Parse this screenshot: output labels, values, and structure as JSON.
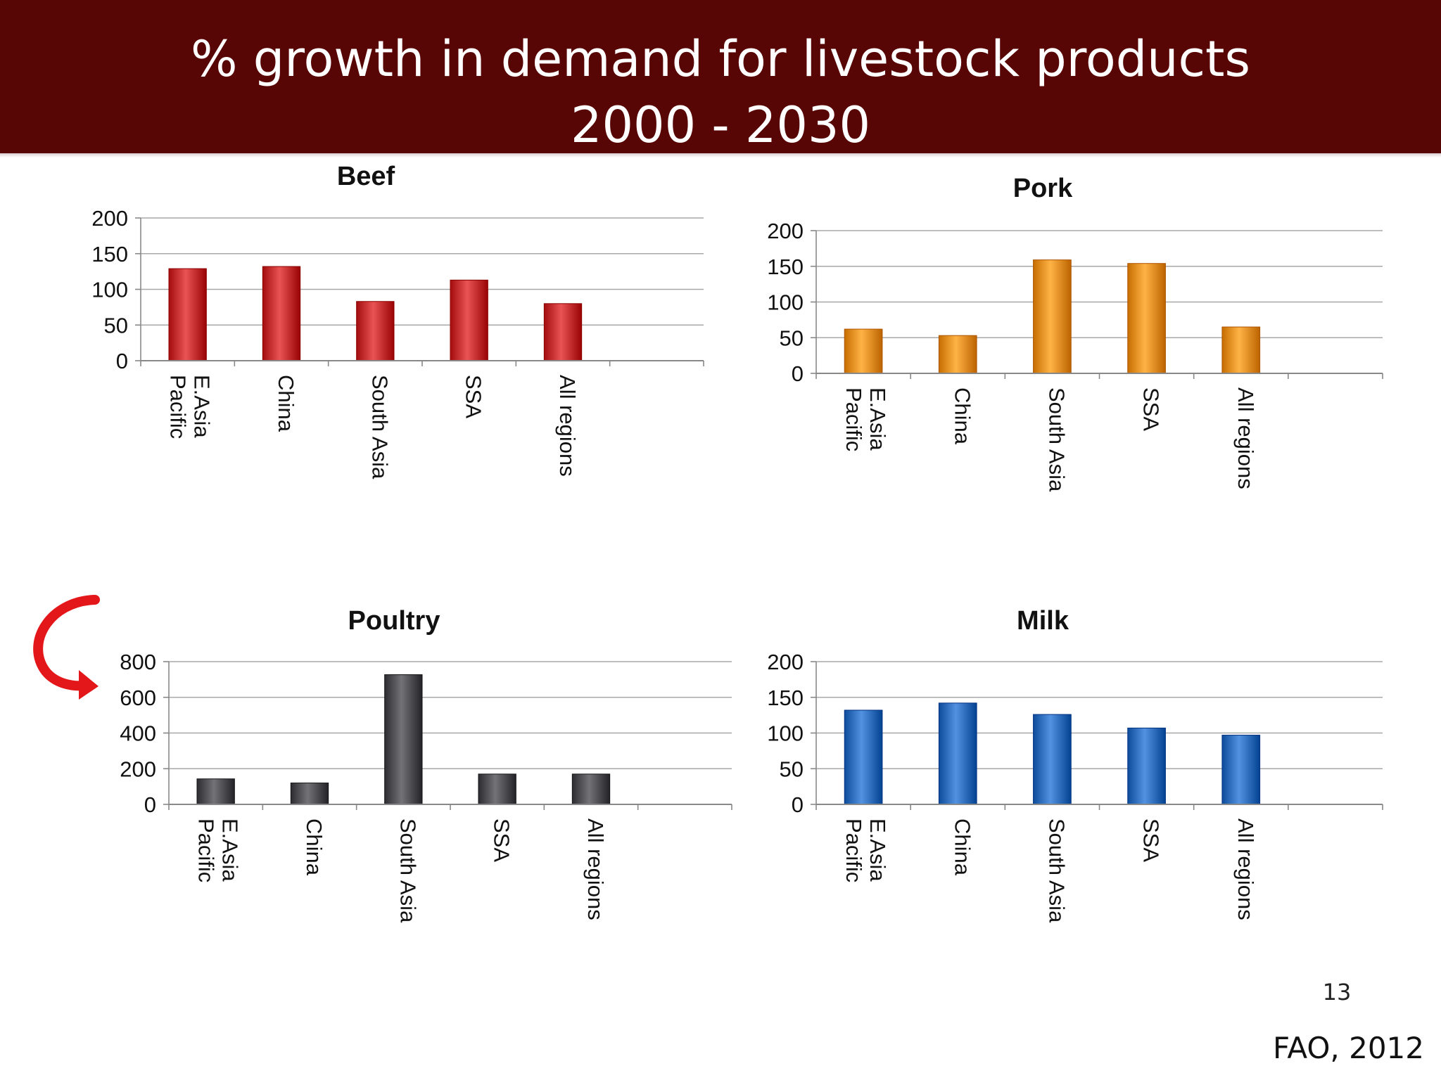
{
  "slide": {
    "title_line1": "% growth in demand for livestock products",
    "title_line2": "2000 - 2030",
    "slide_number": "13",
    "source": "FAO, 2012",
    "header_color": "#570505"
  },
  "chart_data": [
    {
      "type": "bar",
      "title": "Beef",
      "categories": [
        "E.Asia Pacific",
        "China",
        "South Asia",
        "SSA",
        "All regions"
      ],
      "values": [
        129,
        132,
        83,
        113,
        80
      ],
      "ylim": [
        0,
        200
      ],
      "yticks": [
        0,
        50,
        100,
        150,
        200
      ],
      "grid": true,
      "color": "#d03a3a",
      "xlabel": "",
      "ylabel": ""
    },
    {
      "type": "bar",
      "title": "Pork",
      "categories": [
        "E.Asia Pacific",
        "China",
        "South Asia",
        "SSA",
        "All regions"
      ],
      "values": [
        62,
        53,
        159,
        154,
        65
      ],
      "ylim": [
        0,
        200
      ],
      "yticks": [
        0,
        50,
        100,
        150,
        200
      ],
      "grid": true,
      "color": "#f39a2c",
      "xlabel": "",
      "ylabel": ""
    },
    {
      "type": "bar",
      "title": "Poultry",
      "categories": [
        "E.Asia Pacific",
        "China",
        "South Asia",
        "SSA",
        "All regions"
      ],
      "values": [
        143,
        120,
        727,
        170,
        170
      ],
      "ylim": [
        0,
        800
      ],
      "yticks": [
        0,
        200,
        400,
        600,
        800
      ],
      "grid": true,
      "color": "#5a5a5e",
      "xlabel": "",
      "ylabel": ""
    },
    {
      "type": "bar",
      "title": "Milk",
      "categories": [
        "E.Asia Pacific",
        "China",
        "South Asia",
        "SSA",
        "All regions"
      ],
      "values": [
        132,
        142,
        126,
        107,
        97
      ],
      "ylim": [
        0,
        200
      ],
      "yticks": [
        0,
        50,
        100,
        150,
        200
      ],
      "grid": true,
      "color": "#3a78c8",
      "xlabel": "",
      "ylabel": ""
    }
  ]
}
